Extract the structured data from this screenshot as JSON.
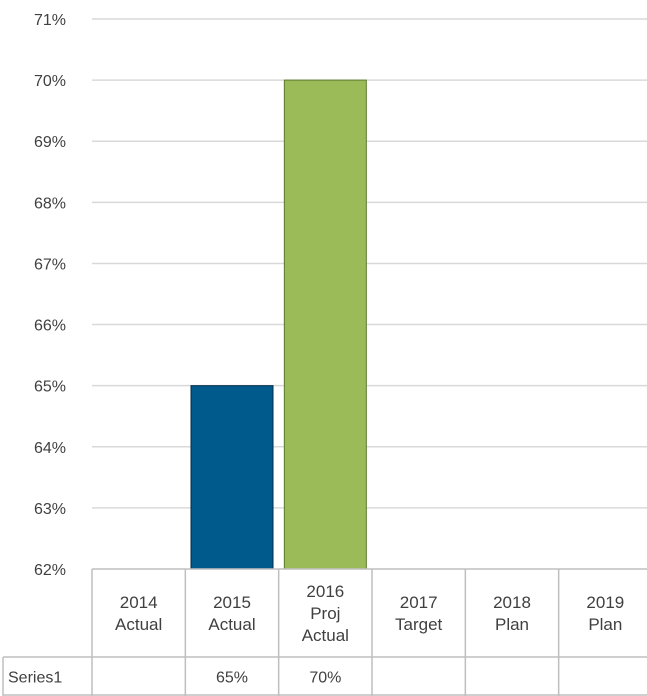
{
  "chart_data": {
    "type": "bar",
    "categories": [
      [
        "2014",
        "Actual"
      ],
      [
        "2015",
        "Actual"
      ],
      [
        "2016",
        "Proj",
        "Actual"
      ],
      [
        "2017",
        "Target"
      ],
      [
        "2018",
        "Plan"
      ],
      [
        "2019",
        "Plan"
      ]
    ],
    "series": [
      {
        "name": "Series1",
        "values": [
          null,
          0.65,
          0.7,
          null,
          null,
          null
        ],
        "display": [
          "",
          "65%",
          "70%",
          "",
          "",
          ""
        ],
        "colors": [
          "#005a8c",
          "#005a8c",
          "#9bbb59",
          "#005a8c",
          "#005a8c",
          "#005a8c"
        ]
      }
    ],
    "y_ticks": [
      "62%",
      "63%",
      "64%",
      "65%",
      "66%",
      "67%",
      "68%",
      "69%",
      "70%",
      "71%"
    ],
    "ylim": [
      0.62,
      0.71
    ],
    "grid": true,
    "data_table": true,
    "legend": "none"
  }
}
